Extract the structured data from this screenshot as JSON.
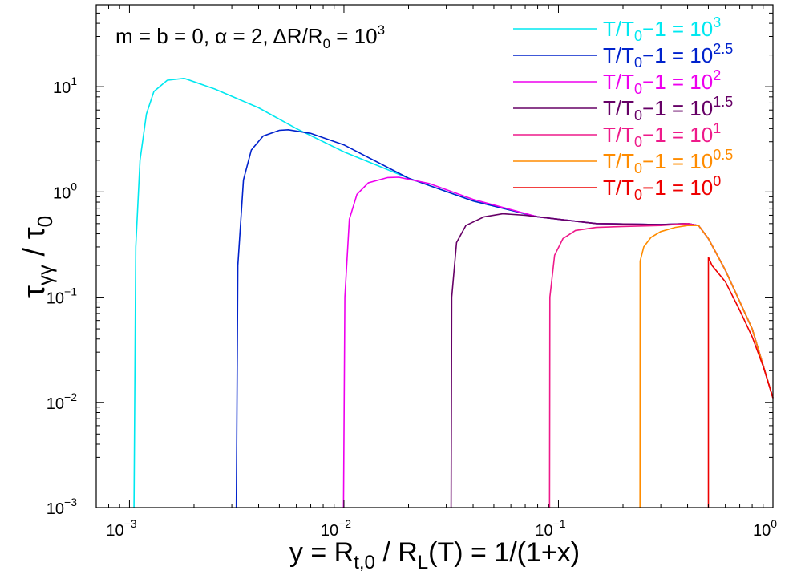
{
  "chart_data": {
    "type": "line",
    "x_scale": "log",
    "y_scale": "log",
    "xlim": [
      0.0007,
      1.0
    ],
    "ylim": [
      0.001,
      60
    ],
    "x_ticks": [
      {
        "value": 0.001,
        "base": "10",
        "exp": "−3"
      },
      {
        "value": 0.01,
        "base": "10",
        "exp": "−2"
      },
      {
        "value": 0.1,
        "base": "10",
        "exp": "−1"
      },
      {
        "value": 1,
        "base": "10",
        "exp": "0"
      }
    ],
    "y_ticks": [
      {
        "value": 0.001,
        "base": "10",
        "exp": "−3"
      },
      {
        "value": 0.01,
        "base": "10",
        "exp": "−2"
      },
      {
        "value": 0.1,
        "base": "10",
        "exp": "−1"
      },
      {
        "value": 1,
        "base": "10",
        "exp": "0"
      },
      {
        "value": 10,
        "base": "10",
        "exp": "1"
      }
    ],
    "xlabel": {
      "pre": "y = R",
      "sub1": "t,0",
      "mid": " / R",
      "sub2": "L",
      "post": "(T) = 1/(1+x)"
    },
    "ylabel": {
      "main": "τ",
      "sub": "γγ",
      "rest": " / τ",
      "sub2": "0"
    },
    "annotation": {
      "pre": "m = b = 0, α = 2, ΔR/R",
      "sub": "0",
      "mid": " = 10",
      "sup": "3"
    },
    "legend_position": "top-right",
    "series": [
      {
        "name": "T/T0−1 = 10^3",
        "label_pre": "T/T",
        "label_sub": "0",
        "label_mid": "−1 = 10",
        "label_sup": "3",
        "color": "#00e8f0",
        "points": [
          [
            0.00105,
            0.001
          ],
          [
            0.00107,
            0.3
          ],
          [
            0.00112,
            2
          ],
          [
            0.0012,
            5.5
          ],
          [
            0.0013,
            9
          ],
          [
            0.0015,
            11.5
          ],
          [
            0.0018,
            12
          ],
          [
            0.0025,
            9.5
          ],
          [
            0.004,
            6.3
          ],
          [
            0.006,
            4
          ],
          [
            0.01,
            2.4
          ],
          [
            0.02,
            1.35
          ],
          [
            0.04,
            0.82
          ],
          [
            0.08,
            0.58
          ],
          [
            0.15,
            0.5
          ],
          [
            0.3,
            0.49
          ],
          [
            0.4,
            0.5
          ],
          [
            0.45,
            0.48
          ],
          [
            0.5,
            0.36
          ],
          [
            0.6,
            0.18
          ],
          [
            0.8,
            0.05
          ],
          [
            1.0,
            0.011
          ]
        ]
      },
      {
        "name": "T/T0−1 = 10^2.5",
        "label_pre": "T/T",
        "label_sub": "0",
        "label_mid": "−1 = 10",
        "label_sup": "2.5",
        "color": "#0022cc",
        "points": [
          [
            0.00315,
            0.001
          ],
          [
            0.0032,
            0.2
          ],
          [
            0.0034,
            1.3
          ],
          [
            0.0037,
            2.5
          ],
          [
            0.0042,
            3.4
          ],
          [
            0.005,
            3.85
          ],
          [
            0.0055,
            3.9
          ],
          [
            0.007,
            3.6
          ],
          [
            0.01,
            2.8
          ],
          [
            0.02,
            1.35
          ],
          [
            0.04,
            0.82
          ],
          [
            0.08,
            0.58
          ],
          [
            0.15,
            0.5
          ],
          [
            0.3,
            0.49
          ],
          [
            0.4,
            0.5
          ],
          [
            0.45,
            0.48
          ],
          [
            0.5,
            0.36
          ],
          [
            0.6,
            0.18
          ],
          [
            0.8,
            0.05
          ],
          [
            1.0,
            0.011
          ]
        ]
      },
      {
        "name": "T/T0−1 = 10^2",
        "label_pre": "T/T",
        "label_sub": "0",
        "label_mid": "−1 = 10",
        "label_sup": "2",
        "color": "#ee00ee",
        "points": [
          [
            0.00995,
            0.001
          ],
          [
            0.0101,
            0.1
          ],
          [
            0.0106,
            0.55
          ],
          [
            0.0115,
            0.95
          ],
          [
            0.013,
            1.22
          ],
          [
            0.016,
            1.37
          ],
          [
            0.018,
            1.38
          ],
          [
            0.025,
            1.2
          ],
          [
            0.04,
            0.85
          ],
          [
            0.08,
            0.58
          ],
          [
            0.15,
            0.5
          ],
          [
            0.3,
            0.49
          ],
          [
            0.4,
            0.5
          ],
          [
            0.45,
            0.48
          ],
          [
            0.5,
            0.36
          ],
          [
            0.6,
            0.18
          ],
          [
            0.8,
            0.05
          ],
          [
            1.0,
            0.011
          ]
        ]
      },
      {
        "name": "T/T0−1 = 10^1.5",
        "label_pre": "T/T",
        "label_sub": "0",
        "label_mid": "−1 = 10",
        "label_sup": "1.5",
        "color": "#660066",
        "points": [
          [
            0.0316,
            0.001
          ],
          [
            0.0318,
            0.1
          ],
          [
            0.0335,
            0.33
          ],
          [
            0.037,
            0.48
          ],
          [
            0.045,
            0.58
          ],
          [
            0.055,
            0.62
          ],
          [
            0.07,
            0.6
          ],
          [
            0.1,
            0.55
          ],
          [
            0.15,
            0.5
          ],
          [
            0.3,
            0.49
          ],
          [
            0.4,
            0.5
          ],
          [
            0.45,
            0.48
          ],
          [
            0.5,
            0.36
          ],
          [
            0.6,
            0.18
          ],
          [
            0.8,
            0.05
          ],
          [
            1.0,
            0.011
          ]
        ]
      },
      {
        "name": "T/T0−1 = 10^1",
        "label_pre": "T/T",
        "label_sub": "0",
        "label_mid": "−1 = 10",
        "label_sup": "1",
        "color": "#ee1a8a",
        "points": [
          [
            0.0909,
            0.001
          ],
          [
            0.0912,
            0.1
          ],
          [
            0.096,
            0.25
          ],
          [
            0.105,
            0.36
          ],
          [
            0.12,
            0.43
          ],
          [
            0.15,
            0.46
          ],
          [
            0.2,
            0.47
          ],
          [
            0.3,
            0.48
          ],
          [
            0.4,
            0.5
          ],
          [
            0.45,
            0.48
          ],
          [
            0.5,
            0.36
          ],
          [
            0.6,
            0.18
          ],
          [
            0.8,
            0.05
          ],
          [
            1.0,
            0.011
          ]
        ]
      },
      {
        "name": "T/T0−1 = 10^0.5",
        "label_pre": "T/T",
        "label_sub": "0",
        "label_mid": "−1 = 10",
        "label_sup": "0.5",
        "color": "#ff8c00",
        "points": [
          [
            0.24,
            0.001
          ],
          [
            0.2405,
            0.22
          ],
          [
            0.25,
            0.3
          ],
          [
            0.27,
            0.37
          ],
          [
            0.3,
            0.42
          ],
          [
            0.35,
            0.46
          ],
          [
            0.4,
            0.48
          ],
          [
            0.45,
            0.48
          ],
          [
            0.5,
            0.36
          ],
          [
            0.6,
            0.18
          ],
          [
            0.8,
            0.05
          ],
          [
            1.0,
            0.011
          ]
        ]
      },
      {
        "name": "T/T0−1 = 10^0",
        "label_pre": "T/T",
        "label_sub": "0",
        "label_mid": "−1 = 10",
        "label_sup": "0",
        "color": "#ee0000",
        "points": [
          [
            0.5,
            0.001
          ],
          [
            0.5,
            0.24
          ],
          [
            0.52,
            0.2
          ],
          [
            0.6,
            0.14
          ],
          [
            0.7,
            0.075
          ],
          [
            0.8,
            0.042
          ],
          [
            0.9,
            0.022
          ],
          [
            1.0,
            0.011
          ]
        ]
      }
    ]
  }
}
